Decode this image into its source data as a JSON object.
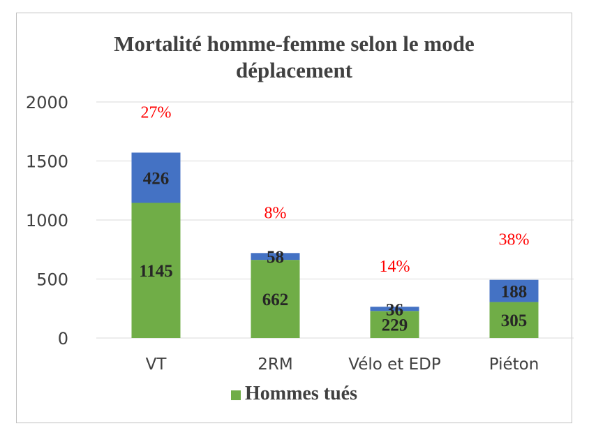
{
  "chart_data": {
    "type": "bar",
    "stacked": true,
    "title_lines": [
      "Mortalité homme-femme selon le mode",
      "déplacement"
    ],
    "categories": [
      "VT",
      "2RM",
      "Vélo et EDP",
      "Piéton"
    ],
    "series": [
      {
        "name": "Hommes tués",
        "values": [
          1145,
          662,
          229,
          305
        ],
        "color": "#70ad47"
      },
      {
        "values": [
          426,
          58,
          36,
          188
        ],
        "color": "#4472c4"
      }
    ],
    "percent_labels": [
      "27%",
      "8%",
      "14%",
      "38%"
    ],
    "percent_color": "#ff0000",
    "yticks": [
      0,
      500,
      1000,
      1500,
      2000
    ],
    "ylim": [
      0,
      2000
    ],
    "grid": true,
    "legend": "bottom"
  }
}
